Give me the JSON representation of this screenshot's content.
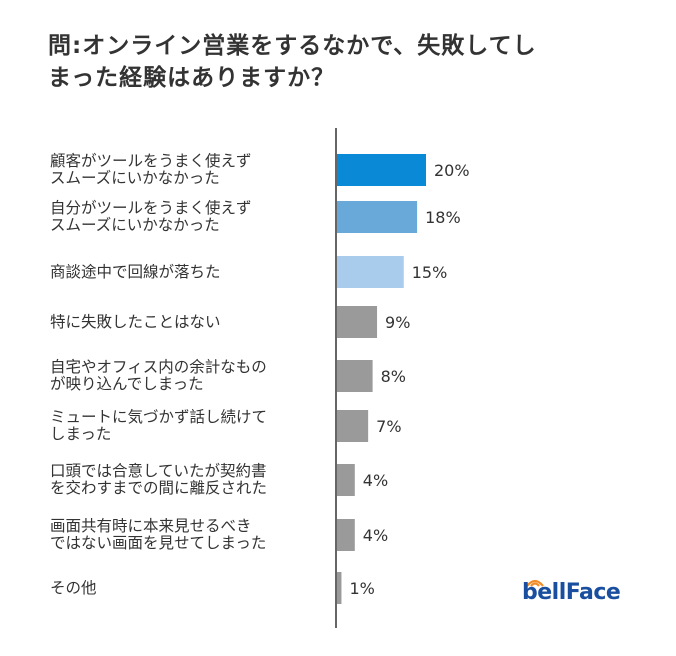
{
  "title": {
    "line1": "問:オンライン営業をするなかで、失敗してし",
    "line2": "まった経験はありますか？"
  },
  "chart_data": {
    "type": "bar",
    "orientation": "horizontal",
    "categories": [
      [
        "顧客がツールをうまく使えず",
        "スムーズにいかなかった"
      ],
      [
        "自分がツールをうまく使えず",
        "スムーズにいかなかった"
      ],
      [
        "商談途中で回線が落ちた"
      ],
      [
        "特に失敗したことはない"
      ],
      [
        "自宅やオフィス内の余計なもの",
        "が映り込んでしまった"
      ],
      [
        "ミュートに気づかず話し続けて",
        "しまった"
      ],
      [
        "口頭では合意していたが契約書",
        "を交わすまでの間に離反された"
      ],
      [
        "画面共有時に本来見せるべき",
        "ではない画面を見せてしまった"
      ],
      [
        "その他"
      ]
    ],
    "values": [
      20,
      18,
      15,
      9,
      8,
      7,
      4,
      4,
      1
    ],
    "value_labels": [
      "20%",
      "18%",
      "15%",
      "9%",
      "8%",
      "7%",
      "4%",
      "4%",
      "1%"
    ],
    "unit": "%",
    "colors": [
      "#0a8ad6",
      "#69a9d9",
      "#a9cced",
      "#9a9a9a",
      "#9a9a9a",
      "#9a9a9a",
      "#9a9a9a",
      "#9a9a9a",
      "#9a9a9a"
    ],
    "xlim": [
      0,
      20
    ],
    "legend": "none",
    "grid": false
  },
  "brand": {
    "logo_text": "bellFace",
    "logo_color": "#1a4fa0",
    "logo_accent": "#f28c28"
  }
}
